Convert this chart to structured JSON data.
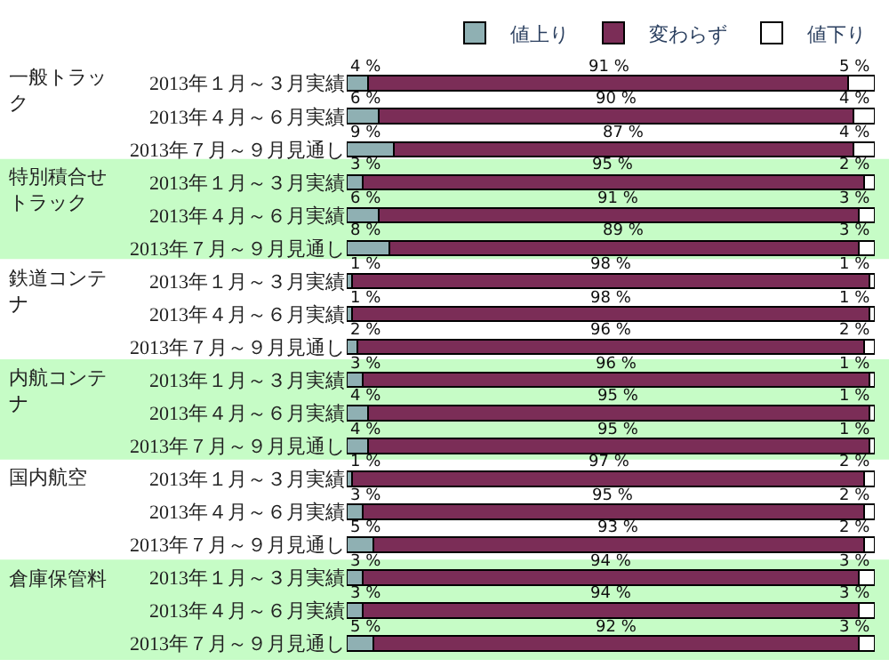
{
  "chart_data": {
    "type": "bar",
    "orientation": "horizontal",
    "stacked": true,
    "annotations": [
      "一般トラック",
      "特別積合せトラック",
      "鉄道コンテナ",
      "内航コンテナ",
      "国内航空",
      "倉庫保管料"
    ],
    "categories": [
      "2013年１月～３月実績",
      "2013年４月～６月実績",
      "2013年７月～９月見通し",
      "2013年１月～３月実績",
      "2013年４月～６月実績",
      "2013年７月～９月見通し",
      "2013年１月～３月実績",
      "2013年４月～６月実績",
      "2013年７月～９月見通し",
      "2013年１月～３月実績",
      "2013年４月～６月実績",
      "2013年７月～９月見通し",
      "2013年１月～３月実績",
      "2013年４月～６月実績",
      "2013年７月～９月見通し",
      "2013年１月～３月実績",
      "2013年４月～６月実績",
      "2013年７月～９月見通し"
    ],
    "xlim": [
      0,
      100
    ],
    "tick_labels": "y",
    "grid": false,
    "legend": "top right",
    "series": [
      {
        "name": "値上り",
        "color": "#8fb0b3",
        "values": [
          4,
          6,
          9,
          3,
          6,
          8,
          1,
          1,
          2,
          3,
          4,
          4,
          1,
          3,
          5,
          3,
          3,
          5
        ],
        "value_labels": [
          "4 %",
          "6 %",
          "9 %",
          "3 %",
          "6 %",
          "8 %",
          "1 %",
          "1 %",
          "2 %",
          "3 %",
          "4 %",
          "4 %",
          "1 %",
          "3 %",
          "5 %",
          "3 %",
          "3 %",
          "5 %"
        ]
      },
      {
        "name": "変わらず",
        "color": "#7b2d57",
        "values": [
          91,
          90,
          87,
          95,
          91,
          89,
          98,
          98,
          96,
          96,
          95,
          95,
          97,
          95,
          93,
          94,
          94,
          92
        ],
        "value_labels": [
          "91 %",
          "90 %",
          "87 %",
          "95 %",
          "91 %",
          "89 %",
          "98 %",
          "98 %",
          "96 %",
          "96 %",
          "95 %",
          "95 %",
          "97 %",
          "95 %",
          "93 %",
          "94 %",
          "94 %",
          "92 %"
        ]
      },
      {
        "name": "値下り",
        "color": "#ffffff",
        "values": [
          5,
          4,
          4,
          2,
          3,
          3,
          1,
          1,
          2,
          1,
          1,
          1,
          2,
          2,
          2,
          3,
          3,
          3
        ],
        "value_labels": [
          "5 %",
          "4 %",
          "4 %",
          "2 %",
          "3 %",
          "3 %",
          "1 %",
          "1 %",
          "2 %",
          "1 %",
          "1 %",
          "1 %",
          "2 %",
          "2 %",
          "2 %",
          "3 %",
          "3 %",
          "3 %"
        ]
      }
    ]
  }
}
